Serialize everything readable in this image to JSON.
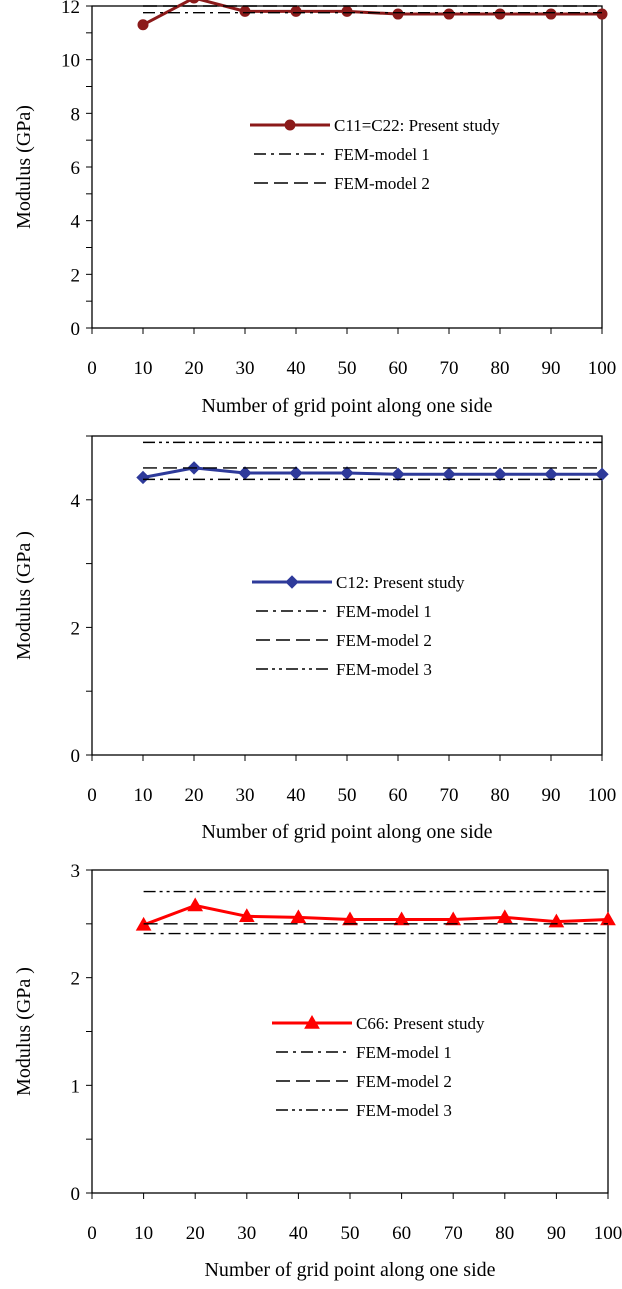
{
  "chart_data": [
    {
      "type": "line",
      "x": [
        10,
        20,
        30,
        40,
        50,
        60,
        70,
        80,
        90,
        100
      ],
      "xlim": [
        0,
        100
      ],
      "ylim": [
        0,
        12
      ],
      "x_ticks": [
        "0",
        "10",
        "20",
        "30",
        "40",
        "50",
        "60",
        "70",
        "80",
        "90",
        "100"
      ],
      "y_ticks": [
        "0",
        "2",
        "4",
        "6",
        "8",
        "10",
        "12"
      ],
      "xlabel": "Number of grid point along one side",
      "ylabel": "Modulus (GPa)",
      "legend_position": "center-right",
      "grid": false,
      "series": [
        {
          "name": "C11=C22: Present study",
          "color": "#8b1a1a",
          "marker": "circle",
          "values": [
            11.3,
            12.3,
            11.8,
            11.8,
            11.8,
            11.7,
            11.7,
            11.7,
            11.7,
            11.7
          ]
        },
        {
          "name": "FEM-model 1",
          "color": "#000000",
          "style": "dash-dot",
          "constant": 11.75
        },
        {
          "name": "FEM-model 2",
          "color": "#000000",
          "style": "dash",
          "constant": 12.0
        }
      ]
    },
    {
      "type": "line",
      "x": [
        10,
        20,
        30,
        40,
        50,
        60,
        70,
        80,
        90,
        100
      ],
      "xlim": [
        0,
        100
      ],
      "ylim": [
        0,
        5
      ],
      "x_ticks": [
        "0",
        "10",
        "20",
        "30",
        "40",
        "50",
        "60",
        "70",
        "80",
        "90",
        "100"
      ],
      "y_ticks": [
        "0",
        "2",
        "4"
      ],
      "xlabel": "Number of grid point along one side",
      "ylabel": "Modulus (GPa )",
      "legend_position": "center-right",
      "grid": false,
      "series": [
        {
          "name": "C12: Present study",
          "color": "#2e3a9a",
          "marker": "diamond",
          "values": [
            4.35,
            4.5,
            4.42,
            4.42,
            4.42,
            4.4,
            4.4,
            4.4,
            4.4,
            4.4
          ]
        },
        {
          "name": "FEM-model 1",
          "color": "#000000",
          "style": "dash-dot",
          "constant": 4.32
        },
        {
          "name": "FEM-model 2",
          "color": "#000000",
          "style": "dash",
          "constant": 4.5
        },
        {
          "name": "FEM-model 3",
          "color": "#000000",
          "style": "dash-dot-dot",
          "constant": 4.9
        }
      ]
    },
    {
      "type": "line",
      "x": [
        10,
        20,
        30,
        40,
        50,
        60,
        70,
        80,
        90,
        100
      ],
      "xlim": [
        0,
        100
      ],
      "ylim": [
        0,
        3
      ],
      "x_ticks": [
        "0",
        "10",
        "20",
        "30",
        "40",
        "50",
        "60",
        "70",
        "80",
        "90",
        "100"
      ],
      "y_ticks": [
        "0",
        "1",
        "2",
        "3"
      ],
      "xlabel": "Number of grid point along one side",
      "ylabel": "Modulus (GPa )",
      "legend_position": "center-right",
      "grid": false,
      "series": [
        {
          "name": "C66: Present study",
          "color": "#ff0000",
          "marker": "triangle",
          "values": [
            2.49,
            2.67,
            2.57,
            2.56,
            2.54,
            2.54,
            2.54,
            2.56,
            2.52,
            2.54
          ]
        },
        {
          "name": "FEM-model 1",
          "color": "#000000",
          "style": "dash-dot",
          "constant": 2.41
        },
        {
          "name": "FEM-model 2",
          "color": "#000000",
          "style": "dash",
          "constant": 2.5
        },
        {
          "name": "FEM-model 3",
          "color": "#000000",
          "style": "dash-dot-dot",
          "constant": 2.8
        }
      ]
    }
  ]
}
